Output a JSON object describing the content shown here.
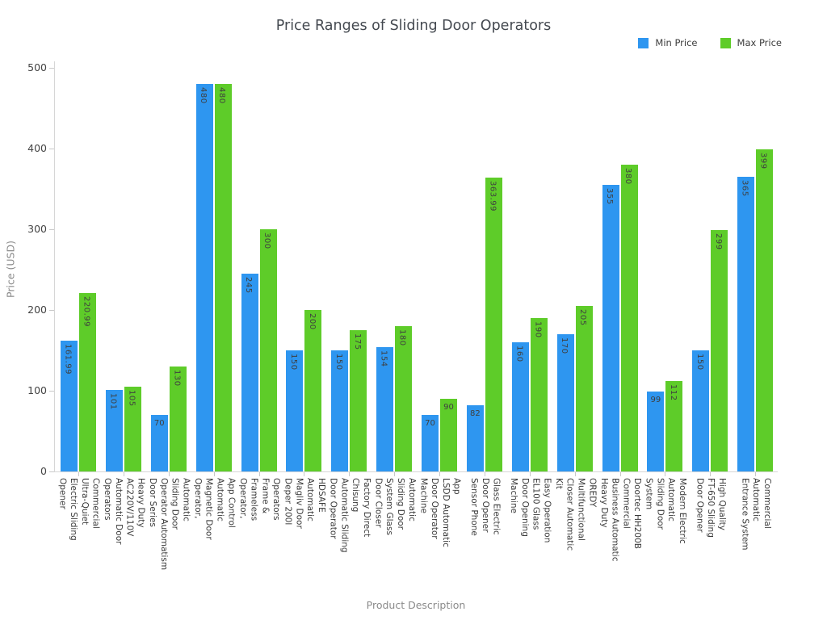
{
  "title": "Price Ranges of Sliding Door Operators",
  "legend": {
    "items": [
      {
        "label": "Min Price",
        "color": "#2e96f0"
      },
      {
        "label": "Max Price",
        "color": "#5ecc29"
      }
    ]
  },
  "y_axis": {
    "title": "Price (USD)",
    "ticks": [
      0,
      100,
      200,
      300,
      400,
      500
    ],
    "range": [
      0,
      500
    ]
  },
  "x_axis": {
    "title": "Product Description"
  },
  "chart_data": {
    "type": "bar",
    "title": "Price Ranges of Sliding Door Operators",
    "xlabel": "Product Description",
    "ylabel": "Price (USD)",
    "ylim": [
      0,
      500
    ],
    "grid": false,
    "legend_position": "top-right",
    "bar_colors": {
      "min": "#2e96f0",
      "max": "#5ecc29"
    },
    "value_label_color": "#3f3f3f",
    "categories": [
      [
        "Commercial",
        "Ultra-Quiet",
        "Electric Sliding",
        "Opener"
      ],
      [
        "Heavy Duty",
        "AC220V/110V",
        "Automatic Door",
        "Operators"
      ],
      [
        "Automatic",
        "Sliding Door",
        "Operator Automatism",
        "Door Series"
      ],
      [
        "App Control",
        "Automatic",
        "Magnetic Door",
        "Operator,"
      ],
      [
        "Operators",
        "Frame &",
        "Frameless",
        "Operator,"
      ],
      [
        "HDSAFE",
        "Automatic",
        "Magliv Door",
        "Deper 200l"
      ],
      [
        "Factory Direct",
        "Chisung",
        "Automatic Sliding",
        "Door Operator"
      ],
      [
        "Automatic",
        "Sliding Door",
        "System Glass",
        "Door Closer"
      ],
      [
        "App",
        "LSDD Automatic",
        "Door Operator",
        "Machine"
      ],
      [
        "Glass Electric",
        "Door Opener",
        "Sensor Phone"
      ],
      [
        "Easy Operation",
        "EL100 Glass",
        "Door Opening",
        "Machine"
      ],
      [
        "OREDY",
        "Multifunctional",
        "Closer Automatic",
        "Kit"
      ],
      [
        "Doortec HH200B",
        "Commercial",
        "Business Automatic",
        "Heavy Duty"
      ],
      [
        "Modern Electric",
        "Automatic",
        "Sliding Door",
        "System"
      ],
      [
        "High Quality",
        "FT-650 Sliding",
        "Door Opener"
      ],
      [
        "Commercial",
        "Automatic",
        "Entrance System"
      ]
    ],
    "series": [
      {
        "name": "Min Price",
        "values": [
          161.99,
          101,
          70,
          480,
          245,
          150,
          150,
          154,
          70,
          82,
          160,
          170,
          355,
          99,
          150,
          365
        ]
      },
      {
        "name": "Max Price",
        "values": [
          220.99,
          105,
          130,
          480,
          300,
          200,
          175,
          180,
          90,
          363.99,
          190,
          205,
          380,
          112,
          299,
          399
        ]
      }
    ]
  }
}
